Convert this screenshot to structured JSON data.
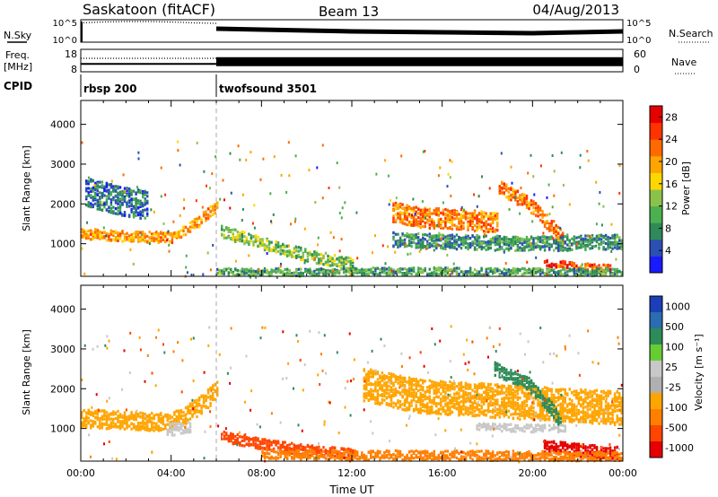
{
  "header": {
    "site": "Saskatoon (fitACF)",
    "beam": "Beam 13",
    "date": "04/Aug/2013"
  },
  "colors": {
    "power": [
      "#1a1aff",
      "#2b4fb3",
      "#2e8b57",
      "#4caf50",
      "#8bc34a",
      "#ffd700",
      "#ffa500",
      "#ff6a00",
      "#ff3300",
      "#e60000"
    ],
    "velocity": [
      "#1a3fb8",
      "#2a6db0",
      "#2e8b57",
      "#66cc33",
      "#c8c8c8",
      "#b0b0b0",
      "#ffa500",
      "#ff7f00",
      "#ff4500",
      "#e60000"
    ]
  },
  "chart_data": [
    {
      "type": "line",
      "name": "nsky-nsearch-panel",
      "left_label": [
        "N.Sky"
      ],
      "right_label": [
        "N.Search"
      ],
      "left_ticks": [
        "10^5",
        "10^0"
      ],
      "right_ticks": [
        "10^5",
        "10^0"
      ],
      "series": [
        {
          "style": "dotted",
          "x": [
            0,
            1,
            2,
            3,
            4,
            5,
            6
          ],
          "values": [
            4.3,
            4.5,
            4.6,
            4.6,
            4.5,
            4.3,
            4.2
          ]
        },
        {
          "style": "solid",
          "x": [
            6,
            8,
            10,
            12,
            14,
            16,
            18,
            20,
            22,
            24
          ],
          "values": [
            3.0,
            2.8,
            2.6,
            2.4,
            2.3,
            2.2,
            2.1,
            2.0,
            2.2,
            2.4
          ]
        }
      ]
    },
    {
      "type": "line",
      "name": "freq-nave-panel",
      "left_label": [
        "Freq.",
        "[MHz]"
      ],
      "right_label": [
        "Nave"
      ],
      "left_ticks": [
        "18",
        "8"
      ],
      "right_ticks": [
        "60",
        "0"
      ],
      "series": [
        {
          "style": "dotted",
          "x": [
            0,
            6
          ],
          "values": [
            14,
            14
          ]
        },
        {
          "style": "solid",
          "x": [
            0,
            6
          ],
          "values": [
            11.5,
            11.5
          ]
        },
        {
          "style": "band",
          "x": [
            6,
            24
          ],
          "values": [
            12.5,
            12.5
          ]
        }
      ]
    },
    {
      "type": "table",
      "name": "cpid-panel",
      "label": "CPID",
      "segments": [
        {
          "start": 0,
          "label": "rbsp 200"
        },
        {
          "start": 6,
          "label": "twofsound 3501"
        }
      ]
    },
    {
      "type": "heatmap",
      "name": "power-panel",
      "ylabel": "Slant Range [km]",
      "ylim": [
        180,
        4600
      ],
      "yticks": [
        "1000",
        "2000",
        "3000",
        "4000"
      ],
      "ytick_values": [
        1000,
        2000,
        3000,
        4000
      ],
      "colorbar_label": "Power [dB]",
      "colorbar_ticks": [
        "4",
        "8",
        "12",
        "16",
        "20",
        "24",
        "28"
      ],
      "colorbar_range": [
        0,
        30
      ],
      "features": [
        {
          "x": [
            0.0,
            2.0,
            4.0,
            5.2,
            6.0
          ],
          "y": [
            1250,
            1180,
            1150,
            1550,
            1950
          ],
          "width": 220,
          "value": 20
        },
        {
          "x": [
            13.8,
            15.0,
            17.0,
            18.5
          ],
          "y": [
            1800,
            1650,
            1600,
            1500
          ],
          "width": 420,
          "value": 22
        },
        {
          "x": [
            18.5,
            19.8,
            20.8,
            21.4
          ],
          "y": [
            2400,
            2000,
            1450,
            1050
          ],
          "width": 300,
          "value": 22
        },
        {
          "x": [
            20.5,
            22.0,
            23.5
          ],
          "y": [
            520,
            420,
            380
          ],
          "width": 150,
          "value": 24
        },
        {
          "x": [
            6.2,
            8.0,
            10.0,
            12.0
          ],
          "y": [
            1300,
            1000,
            700,
            480
          ],
          "width": 250,
          "value": 12
        },
        {
          "x": [
            6.0,
            10.0,
            14.0,
            18.0,
            22.0,
            24.0
          ],
          "y": [
            300,
            280,
            310,
            290,
            280,
            300
          ],
          "width": 150,
          "value": 10
        },
        {
          "x": [
            13.8,
            16.0,
            19.0,
            21.0,
            24.0
          ],
          "y": [
            1100,
            1050,
            1000,
            1000,
            1050
          ],
          "width": 300,
          "value": 8
        },
        {
          "x": [
            0.2,
            1.5,
            3.0
          ],
          "y": [
            2300,
            2100,
            1950
          ],
          "width": 600,
          "value": 6
        }
      ]
    },
    {
      "type": "heatmap",
      "name": "velocity-panel",
      "ylabel": "Slant Range [km]",
      "ylim": [
        180,
        4600
      ],
      "yticks": [
        "1000",
        "2000",
        "3000",
        "4000"
      ],
      "ytick_values": [
        1000,
        2000,
        3000,
        4000
      ],
      "colorbar_label": "Velocity [m s⁻¹]",
      "colorbar_ticks": [
        "1000",
        "500",
        "100",
        "25",
        "-25",
        "-100",
        "-500",
        "-1000"
      ],
      "xlabel": "Time UT",
      "xticks": [
        "00:00",
        "04:00",
        "08:00",
        "12:00",
        "16:00",
        "20:00",
        "00:00"
      ],
      "xlim": [
        0,
        24
      ],
      "features": [
        {
          "x": [
            0.0,
            2.0,
            4.0,
            5.2,
            6.0
          ],
          "y": [
            1250,
            1200,
            1150,
            1550,
            1950
          ],
          "width": 380,
          "value": 0
        },
        {
          "x": [
            12.5,
            15.0,
            18.0,
            21.0,
            24.0
          ],
          "y": [
            2100,
            1800,
            1700,
            1600,
            1500
          ],
          "width": 700,
          "value": 0
        },
        {
          "x": [
            18.3,
            19.8,
            20.8,
            21.3
          ],
          "y": [
            2500,
            2100,
            1500,
            1100
          ],
          "width": 280,
          "value": 600
        },
        {
          "x": [
            20.5,
            22.0,
            23.8
          ],
          "y": [
            550,
            450,
            380
          ],
          "width": 260,
          "value": -700
        },
        {
          "x": [
            6.2,
            8.0,
            10.0,
            12.0
          ],
          "y": [
            800,
            600,
            450,
            350
          ],
          "width": 220,
          "value": -200
        },
        {
          "x": [
            8.0,
            12.0,
            16.0,
            20.0,
            24.0
          ],
          "y": [
            350,
            330,
            320,
            310,
            300
          ],
          "width": 200,
          "value": -60
        },
        {
          "x": [
            3.8,
            4.8
          ],
          "y": [
            950,
            1050
          ],
          "width": 250,
          "value": 150
        },
        {
          "x": [
            17.5,
            19.5,
            21.5
          ],
          "y": [
            1050,
            1000,
            1000
          ],
          "width": 150,
          "value": 150
        }
      ]
    }
  ]
}
